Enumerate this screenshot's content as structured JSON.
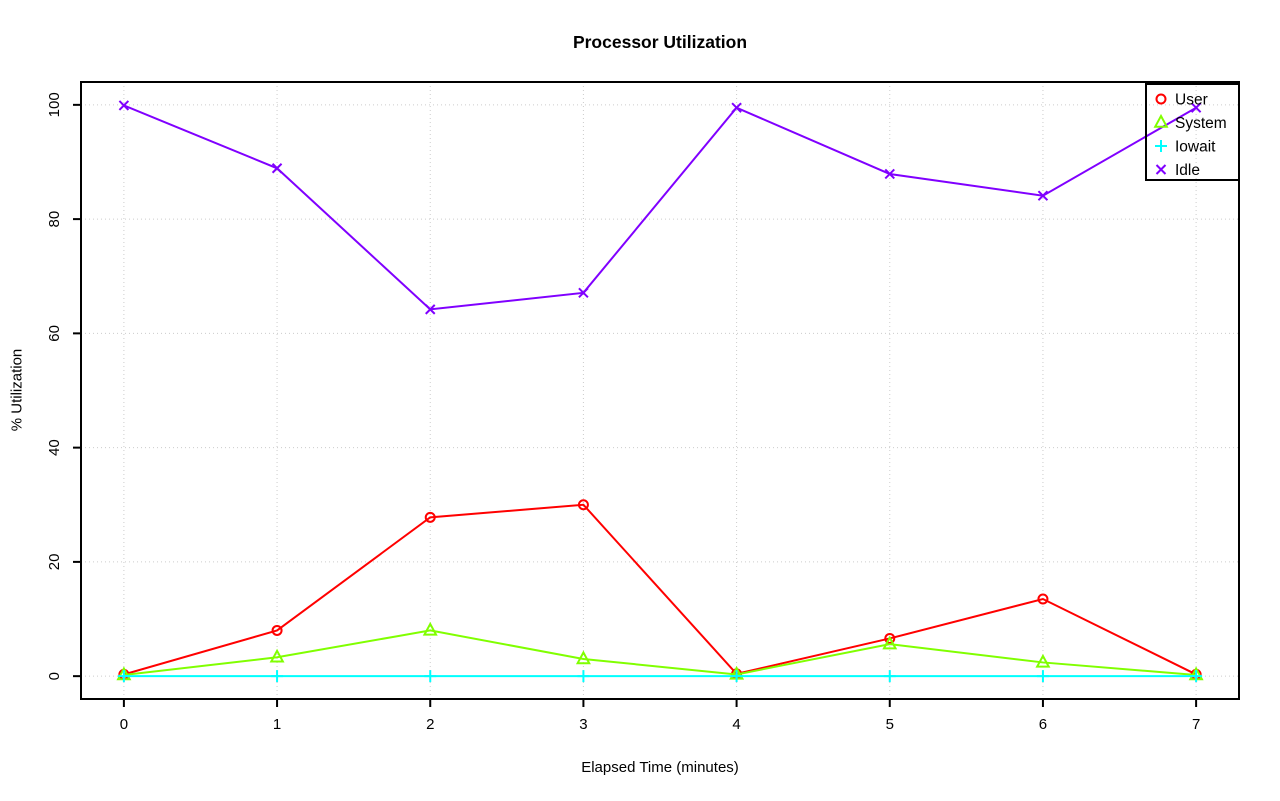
{
  "page": {
    "background": "#ffffff"
  },
  "chart_data": {
    "type": "line",
    "title": "Processor Utilization",
    "xlabel": "Elapsed Time (minutes)",
    "ylabel": "% Utilization",
    "x": [
      0,
      1,
      2,
      3,
      4,
      5,
      6,
      7
    ],
    "xlim": [
      0,
      7
    ],
    "ylim": [
      0,
      100
    ],
    "xticks": [
      "0",
      "1",
      "2",
      "3",
      "4",
      "5",
      "6",
      "7"
    ],
    "yticks": [
      "0",
      "20",
      "40",
      "60",
      "80",
      "100"
    ],
    "grid": true,
    "grid_color": "#cccccc",
    "axis_color": "#000000",
    "legend_position": "topright",
    "series": [
      {
        "name": "User",
        "color": "#ff0000",
        "marker": "circle",
        "values": [
          0.3,
          8,
          27.8,
          30,
          0.4,
          6.6,
          13.5,
          0.3
        ]
      },
      {
        "name": "System",
        "color": "#80ff00",
        "marker": "triangle",
        "values": [
          0.2,
          3.3,
          8,
          3,
          0.3,
          5.6,
          2.4,
          0.2
        ]
      },
      {
        "name": "Iowait",
        "color": "#00ffff",
        "marker": "plus",
        "values": [
          0,
          0,
          0,
          0,
          0,
          0,
          0,
          0
        ]
      },
      {
        "name": "Idle",
        "color": "#8000ff",
        "marker": "x",
        "values": [
          99.9,
          88.9,
          64.2,
          67.1,
          99.5,
          87.9,
          84.1,
          99.5
        ]
      }
    ]
  }
}
